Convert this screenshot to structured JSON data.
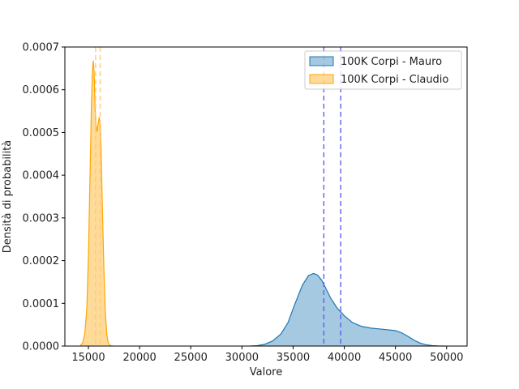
{
  "chart_data": {
    "type": "area",
    "title": "",
    "xlabel": "Valore",
    "ylabel": "Densità di probabilità",
    "xlim": [
      12700,
      52000
    ],
    "ylim": [
      0,
      0.0007
    ],
    "xticks": [
      15000,
      20000,
      25000,
      30000,
      35000,
      40000,
      45000,
      50000
    ],
    "xtick_labels": [
      "15000",
      "20000",
      "25000",
      "30000",
      "35000",
      "40000",
      "45000",
      "50000"
    ],
    "yticks": [
      0,
      0.0001,
      0.0002,
      0.0003,
      0.0004,
      0.0005,
      0.0006,
      0.0007
    ],
    "ytick_labels": [
      "0.0000",
      "0.0001",
      "0.0002",
      "0.0003",
      "0.0004",
      "0.0005",
      "0.0006",
      "0.0007"
    ],
    "grid": false,
    "legend_position": "top-right",
    "series": [
      {
        "name": "100K Corpi - Mauro",
        "color": "#1f77b4",
        "x": [
          30800,
          31500,
          32200,
          33000,
          33800,
          34500,
          35200,
          35900,
          36500,
          37000,
          37400,
          37800,
          38200,
          38700,
          39300,
          40000,
          40800,
          41700,
          42600,
          43500,
          44300,
          45000,
          45600,
          46200,
          46800,
          47400,
          48000,
          48600,
          49200,
          49800
        ],
        "values": [
          0,
          1e-06,
          4e-06,
          1.2e-05,
          2.8e-05,
          5.5e-05,
          0.0001,
          0.000142,
          0.000165,
          0.00017,
          0.000166,
          0.000154,
          0.000135,
          0.000111,
          8.9e-05,
          7.1e-05,
          5.5e-05,
          4.6e-05,
          4.2e-05,
          4e-05,
          3.8e-05,
          3.6e-05,
          3.1e-05,
          2.3e-05,
          1.4e-05,
          7e-06,
          3e-06,
          1e-06,
          3e-07,
          0
        ]
      },
      {
        "name": "100K Corpi - Claudio",
        "color": "#ffa500",
        "x": [
          14200,
          14450,
          14650,
          14850,
          15000,
          15150,
          15300,
          15400,
          15480,
          15560,
          15650,
          15750,
          15850,
          15950,
          16050,
          16150,
          16250,
          16350,
          16500,
          16650,
          16800,
          16950,
          17150,
          17400
        ],
        "values": [
          0,
          8e-06,
          3e-05,
          9e-05,
          0.00021,
          0.00039,
          0.00057,
          0.00065,
          0.000668,
          0.00064,
          0.00056,
          0.000515,
          0.000502,
          0.00052,
          0.000536,
          0.00052,
          0.00045,
          0.00034,
          0.00019,
          8e-05,
          2.6e-05,
          6e-06,
          1e-06,
          0
        ]
      }
    ],
    "vlines": [
      {
        "x": 38000,
        "color": "#5b5bf0",
        "style": "dashed"
      },
      {
        "x": 39650,
        "color": "#5b5bf0",
        "style": "dashed"
      },
      {
        "x": 15700,
        "color": "#ffc87a",
        "style": "dashed"
      },
      {
        "x": 16150,
        "color": "#ffc87a",
        "style": "dashed"
      }
    ]
  }
}
